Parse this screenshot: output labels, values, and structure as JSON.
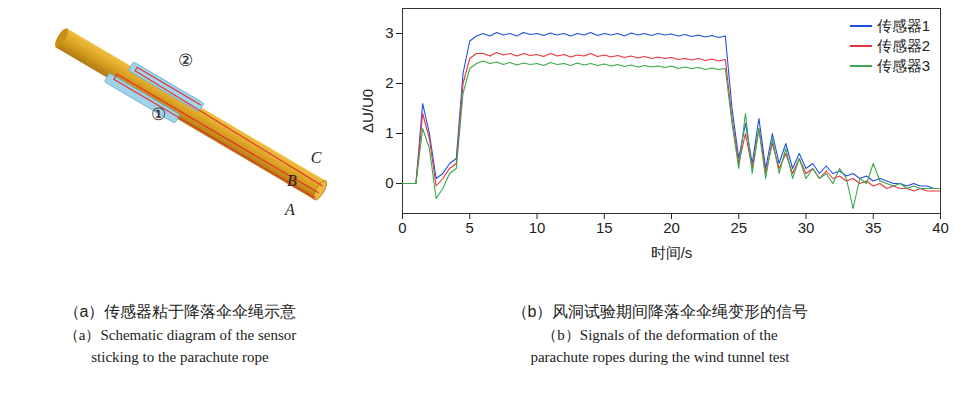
{
  "chart_data": {
    "type": "line",
    "x_label": "时间/s",
    "y_label": "ΔU/U0",
    "xlim": [
      0,
      40
    ],
    "xticks": [
      0,
      5,
      10,
      15,
      20,
      25,
      30,
      35,
      40
    ],
    "ylim": [
      -0.6,
      3.5
    ],
    "yticks": [
      0,
      1,
      2,
      3
    ],
    "grid": false,
    "legend": "upper right",
    "x": [
      0,
      0.5,
      1,
      1.5,
      2,
      2.5,
      3,
      3.5,
      4,
      4.5,
      5,
      5.5,
      6,
      6.5,
      7,
      7.5,
      8,
      8.5,
      9,
      9.5,
      10,
      10.5,
      11,
      11.5,
      12,
      12.5,
      13,
      13.5,
      14,
      14.5,
      15,
      15.5,
      16,
      16.5,
      17,
      17.5,
      18,
      18.5,
      19,
      19.5,
      20,
      20.5,
      21,
      21.5,
      22,
      22.5,
      23,
      23.5,
      24,
      24.5,
      25,
      25.5,
      26,
      26.5,
      27,
      27.5,
      28,
      28.5,
      29,
      29.5,
      30,
      30.5,
      31,
      31.5,
      32,
      32.5,
      33,
      33.5,
      34,
      34.5,
      35,
      35.5,
      36,
      36.5,
      37,
      37.5,
      38,
      38.5,
      39,
      39.5,
      40
    ],
    "series": [
      {
        "name": "传感器1",
        "color": "#1f4fe0",
        "values": [
          0,
          0,
          0,
          1.6,
          1.0,
          0.1,
          0.2,
          0.4,
          0.5,
          2.2,
          2.85,
          2.95,
          3.0,
          2.95,
          3.02,
          2.97,
          3.0,
          2.95,
          3.02,
          2.98,
          3.0,
          2.96,
          3.01,
          2.97,
          3.0,
          2.95,
          3.0,
          2.97,
          3.02,
          2.96,
          3.0,
          2.97,
          3.0,
          2.95,
          3.01,
          2.97,
          3.0,
          2.96,
          3.0,
          2.97,
          2.99,
          2.95,
          2.98,
          2.94,
          2.97,
          2.93,
          2.96,
          2.92,
          2.95,
          1.5,
          0.5,
          1.2,
          0.4,
          1.3,
          0.3,
          1.0,
          0.4,
          0.8,
          0.3,
          0.6,
          0.3,
          0.4,
          0.2,
          0.35,
          0.2,
          0.25,
          0.15,
          0.2,
          0.1,
          0.15,
          0.05,
          0.1,
          0.05,
          0.0,
          0.0,
          -0.05,
          0.0,
          -0.05,
          -0.05,
          -0.1,
          -0.1
        ]
      },
      {
        "name": "传感器2",
        "color": "#e8333a",
        "values": [
          0,
          0,
          0,
          1.4,
          0.9,
          -0.05,
          0.1,
          0.3,
          0.4,
          2.0,
          2.5,
          2.6,
          2.6,
          2.55,
          2.62,
          2.57,
          2.6,
          2.55,
          2.6,
          2.56,
          2.58,
          2.54,
          2.6,
          2.55,
          2.58,
          2.53,
          2.57,
          2.55,
          2.6,
          2.54,
          2.57,
          2.53,
          2.56,
          2.52,
          2.55,
          2.51,
          2.54,
          2.5,
          2.53,
          2.5,
          2.52,
          2.48,
          2.5,
          2.47,
          2.5,
          2.46,
          2.49,
          2.45,
          2.48,
          1.3,
          0.4,
          1.0,
          0.3,
          1.1,
          0.2,
          0.8,
          0.3,
          0.6,
          0.2,
          0.5,
          0.2,
          0.3,
          0.1,
          0.25,
          0.1,
          0.15,
          0.05,
          0.1,
          0.0,
          0.05,
          -0.05,
          0.0,
          -0.1,
          -0.05,
          -0.1,
          -0.1,
          -0.15,
          -0.1,
          -0.15,
          -0.15,
          -0.15
        ]
      },
      {
        "name": "传感器3",
        "color": "#3aa84a",
        "values": [
          0,
          0,
          0,
          1.1,
          0.7,
          -0.3,
          -0.1,
          0.2,
          0.3,
          1.8,
          2.3,
          2.4,
          2.45,
          2.4,
          2.43,
          2.38,
          2.42,
          2.37,
          2.41,
          2.38,
          2.4,
          2.36,
          2.42,
          2.38,
          2.4,
          2.36,
          2.41,
          2.37,
          2.4,
          2.36,
          2.39,
          2.35,
          2.38,
          2.34,
          2.37,
          2.33,
          2.36,
          2.33,
          2.35,
          2.32,
          2.35,
          2.3,
          2.33,
          2.3,
          2.32,
          2.28,
          2.31,
          2.28,
          2.3,
          1.2,
          0.3,
          1.4,
          0.2,
          1.1,
          0.1,
          0.9,
          0.2,
          0.7,
          0.1,
          0.5,
          0.1,
          0.3,
          0.1,
          0.2,
          0.0,
          0.3,
          0.1,
          -0.5,
          0.1,
          0.0,
          0.4,
          0.05,
          0.0,
          -0.05,
          0.0,
          -0.1,
          -0.05,
          -0.1,
          -0.1,
          -0.1,
          -0.1
        ]
      }
    ],
    "caption": [
      "（b）风洞试验期间降落伞伞绳变形的信号",
      "（b）Signals of the deformation of the",
      "parachute ropes during the wind tunnel test"
    ]
  },
  "schematic": {
    "labels": [
      "②",
      "①",
      "A",
      "B",
      "C"
    ],
    "caption": [
      "（a）传感器粘于降落伞伞绳示意",
      "（a）Schematic diagram of the sensor",
      "sticking to the parachute rope"
    ]
  }
}
